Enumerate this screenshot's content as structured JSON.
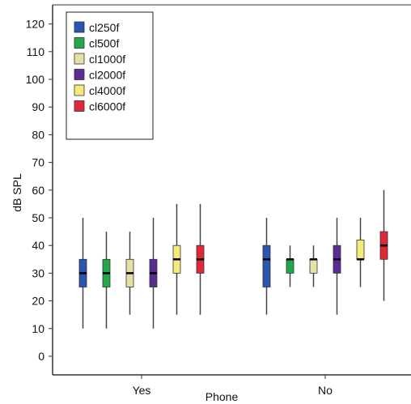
{
  "chart_data": {
    "type": "box",
    "xlabel": "Phone",
    "ylabel": "dB SPL",
    "ylim": [
      -5,
      125
    ],
    "yticks": [
      0,
      10,
      20,
      30,
      40,
      50,
      60,
      70,
      80,
      90,
      100,
      110,
      120
    ],
    "categories": [
      "Yes",
      "No"
    ],
    "legend_position": "top-left",
    "grid": false,
    "series": [
      {
        "name": "cl250f",
        "color": "#2a55b0",
        "boxes": [
          {
            "category": "Yes",
            "min": 10,
            "q1": 25,
            "median": 30,
            "q3": 35,
            "max": 50
          },
          {
            "category": "No",
            "min": 15,
            "q1": 25,
            "median": 35,
            "q3": 40,
            "max": 50
          }
        ]
      },
      {
        "name": "cl500f",
        "color": "#22a84a",
        "boxes": [
          {
            "category": "Yes",
            "min": 10,
            "q1": 25,
            "median": 30,
            "q3": 35,
            "max": 45
          },
          {
            "category": "No",
            "min": 25,
            "q1": 30,
            "median": 35,
            "q3": 35,
            "max": 40
          }
        ]
      },
      {
        "name": "cl1000f",
        "color": "#e6e0a6",
        "boxes": [
          {
            "category": "Yes",
            "min": 15,
            "q1": 25,
            "median": 30,
            "q3": 35,
            "max": 45
          },
          {
            "category": "No",
            "min": 25,
            "q1": 30,
            "median": 35,
            "q3": 35,
            "max": 40
          }
        ]
      },
      {
        "name": "cl2000f",
        "color": "#5b2c93",
        "boxes": [
          {
            "category": "Yes",
            "min": 10,
            "q1": 25,
            "median": 30,
            "q3": 35,
            "max": 50
          },
          {
            "category": "No",
            "min": 15,
            "q1": 30,
            "median": 35,
            "q3": 40,
            "max": 50
          }
        ]
      },
      {
        "name": "cl4000f",
        "color": "#f5e97a",
        "boxes": [
          {
            "category": "Yes",
            "min": 15,
            "q1": 30,
            "median": 35,
            "q3": 40,
            "max": 55
          },
          {
            "category": "No",
            "min": 25,
            "q1": 35,
            "median": 35,
            "q3": 42,
            "max": 50
          }
        ]
      },
      {
        "name": "cl6000f",
        "color": "#e0283a",
        "boxes": [
          {
            "category": "Yes",
            "min": 15,
            "q1": 30,
            "median": 35,
            "q3": 40,
            "max": 55
          },
          {
            "category": "No",
            "min": 20,
            "q1": 35,
            "median": 40,
            "q3": 45,
            "max": 60
          }
        ]
      }
    ]
  }
}
